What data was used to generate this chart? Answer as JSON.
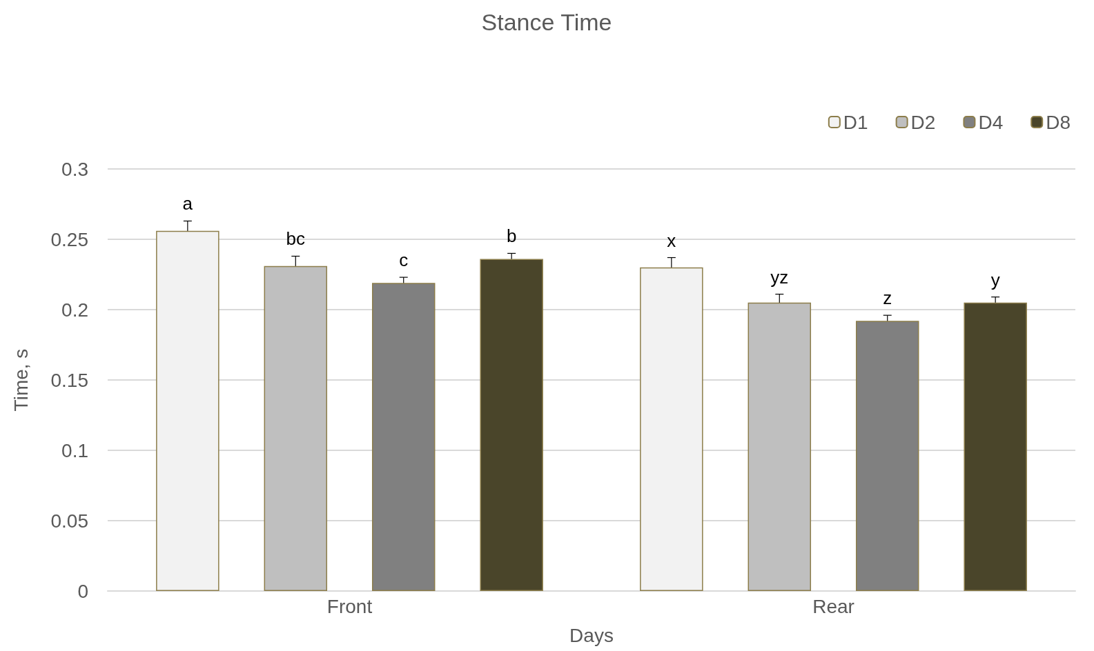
{
  "chart_data": {
    "type": "bar",
    "title": "Stance Time",
    "xlabel": "Days",
    "ylabel": "Time, s",
    "categories": [
      "Front",
      "Rear"
    ],
    "series": [
      {
        "name": "D1",
        "color": "#f2f2f2",
        "values": [
          0.256,
          0.23
        ],
        "errors": [
          0.007,
          0.007
        ],
        "value_labels": [
          "a",
          "x"
        ]
      },
      {
        "name": "D2",
        "color": "#bfbfbf",
        "values": [
          0.231,
          0.205
        ],
        "errors": [
          0.007,
          0.006
        ],
        "value_labels": [
          "bc",
          "yz"
        ]
      },
      {
        "name": "D4",
        "color": "#808080",
        "values": [
          0.219,
          0.192
        ],
        "errors": [
          0.004,
          0.004
        ],
        "value_labels": [
          "c",
          "z"
        ]
      },
      {
        "name": "D8",
        "color": "#4a452a",
        "values": [
          0.236,
          0.205
        ],
        "errors": [
          0.004,
          0.004
        ],
        "value_labels": [
          "b",
          "y"
        ]
      }
    ],
    "ylim": [
      0,
      0.3
    ],
    "yticks": [
      0,
      0.05,
      0.1,
      0.15,
      0.2,
      0.25,
      0.3
    ],
    "grid": "y",
    "legend": "top right"
  }
}
